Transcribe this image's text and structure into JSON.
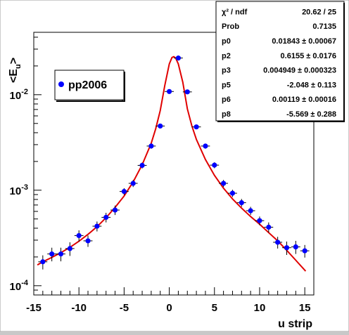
{
  "chart_data": {
    "type": "scatter",
    "xlabel": "u strip",
    "ylabel": "<E",
    "ylabel_sub": "u",
    "ylabel_close": ">",
    "xlim": [
      -15,
      16
    ],
    "ylim": [
      8e-05,
      0.045
    ],
    "log_y": true,
    "grid": false,
    "x_ticks": [
      -15,
      -10,
      -5,
      0,
      5,
      10,
      15
    ],
    "x_tick_labels": [
      "-15",
      "-10",
      "-5",
      "0",
      "5",
      "10",
      "15"
    ],
    "y_ticks": [
      0.0001,
      0.001,
      0.01
    ],
    "y_tick_base": "10",
    "y_tick_exponents": [
      "-4",
      "-3",
      "-2"
    ],
    "legend": {
      "label": "pp2006",
      "placement": "upper-left"
    },
    "marker_color": "#0000ff",
    "fit_color": "#e00000",
    "series": [
      {
        "name": "pp2006",
        "x": [
          -14,
          -13,
          -12,
          -11,
          -10,
          -9,
          -8,
          -7,
          -6,
          -5,
          -4,
          -3,
          -2,
          -1,
          0,
          1,
          2,
          3,
          4,
          5,
          6,
          7,
          8,
          9,
          10,
          11,
          12,
          13,
          14,
          15
        ],
        "y": [
          0.000178,
          0.000215,
          0.000215,
          0.000245,
          0.000335,
          0.000295,
          0.00042,
          0.00052,
          0.00062,
          0.00097,
          0.00118,
          0.00182,
          0.0029,
          0.0047,
          0.0108,
          0.0242,
          0.0107,
          0.0046,
          0.0029,
          0.00183,
          0.00118,
          0.00093,
          0.00074,
          0.00061,
          0.00048,
          0.00041,
          0.000285,
          0.00025,
          0.000255,
          0.000232
        ],
        "y_err": [
          3e-05,
          3.5e-05,
          3.5e-05,
          4e-05,
          4.5e-05,
          4e-05,
          5e-05,
          6e-05,
          7e-05,
          8e-05,
          0.0001,
          0.00013,
          0.00018,
          0.00025,
          0.0004,
          0.0008,
          0.0004,
          0.00025,
          0.00018,
          0.00013,
          0.0001,
          8e-05,
          7e-05,
          6e-05,
          5e-05,
          5e-05,
          4e-05,
          4e-05,
          4e-05,
          3.5e-05
        ]
      }
    ],
    "fit_curve": {
      "x": [
        -14.6,
        -14,
        -13,
        -12,
        -11,
        -10,
        -9,
        -8,
        -7,
        -6,
        -5,
        -4,
        -3,
        -2,
        -1.5,
        -1,
        -0.5,
        0,
        0.3,
        0.5,
        0.7,
        1,
        1.5,
        2,
        2.5,
        3,
        4,
        5,
        6,
        7,
        8,
        9,
        10,
        11,
        12,
        13,
        14,
        15.1
      ],
      "y": [
        0.000165,
        0.000178,
        0.000198,
        0.000222,
        0.000252,
        0.000292,
        0.000345,
        0.000415,
        0.000515,
        0.00066,
        0.00087,
        0.00122,
        0.00185,
        0.0031,
        0.0044,
        0.0068,
        0.0125,
        0.021,
        0.0245,
        0.025,
        0.0242,
        0.021,
        0.0135,
        0.0071,
        0.0047,
        0.0034,
        0.0021,
        0.00143,
        0.00105,
        0.00081,
        0.00065,
        0.00053,
        0.00044,
        0.00036,
        0.000295,
        0.000235,
        0.000185,
        0.000142
      ]
    },
    "stats_box": {
      "rows": [
        {
          "label": "χ² / ndf",
          "value": "20.62 / 25"
        },
        {
          "label": "Prob",
          "value": "0.7135"
        },
        {
          "label": "p0",
          "value": "0.01843 ± 0.00067"
        },
        {
          "label": "p2",
          "value": "0.6155 ± 0.0176"
        },
        {
          "label": "p3",
          "value": "0.004949 ± 0.000323"
        },
        {
          "label": "p5",
          "value": "-2.048 ± 0.113"
        },
        {
          "label": "p6",
          "value": "0.00119 ± 0.00016"
        },
        {
          "label": "p8",
          "value": "-5.569 ± 0.288"
        }
      ]
    }
  }
}
